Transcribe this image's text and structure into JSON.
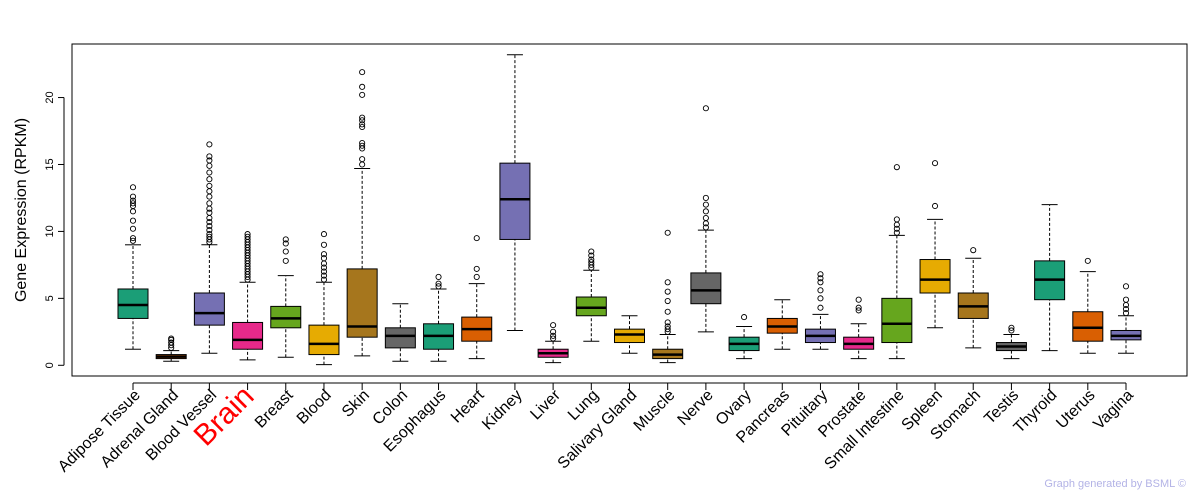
{
  "chart_data": {
    "type": "boxplot",
    "ylabel": "Gene Expression (RPKM)",
    "ylim": [
      -0.8,
      24.0
    ],
    "yticks": [
      0,
      5,
      10,
      15,
      20
    ],
    "highlight_category": "Brain",
    "highlight_color": "#ff0000",
    "categories": [
      {
        "name": "Adipose Tissue",
        "color": "#1b9e77",
        "whisker_low": 1.2,
        "q1": 3.5,
        "median": 4.5,
        "q3": 5.7,
        "whisker_high": 9.0,
        "outliers": [
          9.3,
          9.5,
          10.2,
          10.8,
          11.5,
          11.9,
          12.1,
          12.3,
          12.6,
          13.3
        ]
      },
      {
        "name": "Adrenal Gland",
        "color": "#d95f02",
        "whisker_low": 0.3,
        "q1": 0.5,
        "median": 0.65,
        "q3": 0.8,
        "whisker_high": 1.1,
        "outliers": [
          1.3,
          1.5,
          1.7,
          1.9,
          2.0
        ]
      },
      {
        "name": "Blood Vessel",
        "color": "#7570b3",
        "whisker_low": 0.9,
        "q1": 3.0,
        "median": 3.9,
        "q3": 5.4,
        "whisker_high": 9.0,
        "outliers": [
          9.2,
          9.4,
          9.6,
          9.8,
          10.1,
          10.4,
          10.7,
          11.0,
          11.4,
          11.7,
          12.1,
          12.6,
          13.0,
          13.4,
          13.9,
          14.4,
          14.9,
          15.3,
          15.6,
          16.5
        ]
      },
      {
        "name": "Brain",
        "color": "#e7298a",
        "whisker_low": 0.4,
        "q1": 1.2,
        "median": 1.9,
        "q3": 3.2,
        "whisker_high": 6.2,
        "outliers": [
          6.4,
          6.6,
          6.8,
          7.0,
          7.2,
          7.4,
          7.6,
          7.8,
          8.0,
          8.2,
          8.4,
          8.6,
          8.8,
          9.0,
          9.2,
          9.4,
          9.6,
          9.8
        ]
      },
      {
        "name": "Breast",
        "color": "#66a61e",
        "whisker_low": 0.6,
        "q1": 2.8,
        "median": 3.5,
        "q3": 4.4,
        "whisker_high": 6.7,
        "outliers": [
          7.8,
          8.5,
          9.1,
          9.4
        ]
      },
      {
        "name": "Blood",
        "color": "#e6ab02",
        "whisker_low": 0.05,
        "q1": 0.8,
        "median": 1.6,
        "q3": 3.0,
        "whisker_high": 6.2,
        "outliers": [
          6.4,
          6.7,
          7.0,
          7.3,
          7.6,
          8.0,
          8.3,
          9.0,
          9.8
        ]
      },
      {
        "name": "Skin",
        "color": "#a6761d",
        "whisker_low": 0.7,
        "q1": 2.1,
        "median": 2.9,
        "q3": 7.2,
        "whisker_high": 14.7,
        "outliers": [
          15.0,
          15.4,
          16.2,
          16.4,
          16.6,
          17.8,
          18.0,
          18.3,
          18.5,
          20.2,
          20.8,
          21.9
        ]
      },
      {
        "name": "Colon",
        "color": "#666666",
        "whisker_low": 0.3,
        "q1": 1.3,
        "median": 2.2,
        "q3": 2.8,
        "whisker_high": 4.6,
        "outliers": []
      },
      {
        "name": "Esophagus",
        "color": "#1b9e77",
        "whisker_low": 0.3,
        "q1": 1.2,
        "median": 2.2,
        "q3": 3.1,
        "whisker_high": 5.7,
        "outliers": [
          5.9,
          6.1,
          6.6
        ]
      },
      {
        "name": "Heart",
        "color": "#d95f02",
        "whisker_low": 0.5,
        "q1": 1.8,
        "median": 2.7,
        "q3": 3.6,
        "whisker_high": 6.1,
        "outliers": [
          6.6,
          7.2,
          9.5
        ]
      },
      {
        "name": "Kidney",
        "color": "#7570b3",
        "whisker_low": 2.6,
        "q1": 9.4,
        "median": 12.4,
        "q3": 15.1,
        "whisker_high": 23.2,
        "outliers": []
      },
      {
        "name": "Liver",
        "color": "#e7298a",
        "whisker_low": 0.2,
        "q1": 0.6,
        "median": 0.9,
        "q3": 1.2,
        "whisker_high": 1.8,
        "outliers": [
          2.0,
          2.2,
          2.5,
          3.0
        ]
      },
      {
        "name": "Lung",
        "color": "#66a61e",
        "whisker_low": 1.8,
        "q1": 3.7,
        "median": 4.3,
        "q3": 5.1,
        "whisker_high": 7.1,
        "outliers": [
          7.3,
          7.5,
          7.7,
          7.9,
          8.2,
          8.5
        ]
      },
      {
        "name": "Salivary Gland",
        "color": "#e6ab02",
        "whisker_low": 0.9,
        "q1": 1.7,
        "median": 2.3,
        "q3": 2.7,
        "whisker_high": 3.7,
        "outliers": []
      },
      {
        "name": "Muscle",
        "color": "#a6761d",
        "whisker_low": 0.2,
        "q1": 0.5,
        "median": 0.8,
        "q3": 1.2,
        "whisker_high": 2.3,
        "outliers": [
          2.5,
          2.7,
          2.9,
          3.2,
          4.0,
          4.8,
          5.5,
          6.2,
          9.9
        ]
      },
      {
        "name": "Nerve",
        "color": "#666666",
        "whisker_low": 2.5,
        "q1": 4.6,
        "median": 5.6,
        "q3": 6.9,
        "whisker_high": 10.1,
        "outliers": [
          10.3,
          10.6,
          11.0,
          11.5,
          12.0,
          12.5,
          19.2
        ]
      },
      {
        "name": "Ovary",
        "color": "#1b9e77",
        "whisker_low": 0.5,
        "q1": 1.1,
        "median": 1.6,
        "q3": 2.1,
        "whisker_high": 2.9,
        "outliers": [
          3.6
        ]
      },
      {
        "name": "Pancreas",
        "color": "#d95f02",
        "whisker_low": 1.2,
        "q1": 2.4,
        "median": 2.9,
        "q3": 3.5,
        "whisker_high": 4.9,
        "outliers": []
      },
      {
        "name": "Pituitary",
        "color": "#7570b3",
        "whisker_low": 1.2,
        "q1": 1.7,
        "median": 2.2,
        "q3": 2.7,
        "whisker_high": 3.8,
        "outliers": [
          4.3,
          5.0,
          5.6,
          6.2,
          6.5,
          6.8
        ]
      },
      {
        "name": "Prostate",
        "color": "#e7298a",
        "whisker_low": 0.5,
        "q1": 1.2,
        "median": 1.6,
        "q3": 2.1,
        "whisker_high": 3.1,
        "outliers": [
          4.1,
          4.3,
          4.9
        ]
      },
      {
        "name": "Small Intestine",
        "color": "#66a61e",
        "whisker_low": 0.5,
        "q1": 1.7,
        "median": 3.1,
        "q3": 5.0,
        "whisker_high": 9.7,
        "outliers": [
          9.9,
          10.2,
          10.5,
          10.9,
          14.8
        ]
      },
      {
        "name": "Spleen",
        "color": "#e6ab02",
        "whisker_low": 2.8,
        "q1": 5.4,
        "median": 6.4,
        "q3": 7.9,
        "whisker_high": 10.9,
        "outliers": [
          11.9,
          15.1
        ]
      },
      {
        "name": "Stomach",
        "color": "#a6761d",
        "whisker_low": 1.3,
        "q1": 3.5,
        "median": 4.4,
        "q3": 5.4,
        "whisker_high": 8.0,
        "outliers": [
          8.6
        ]
      },
      {
        "name": "Testis",
        "color": "#666666",
        "whisker_low": 0.5,
        "q1": 1.1,
        "median": 1.4,
        "q3": 1.7,
        "whisker_high": 2.3,
        "outliers": [
          2.6,
          2.8
        ]
      },
      {
        "name": "Thyroid",
        "color": "#1b9e77",
        "whisker_low": 1.1,
        "q1": 4.9,
        "median": 6.4,
        "q3": 7.8,
        "whisker_high": 12.0,
        "outliers": []
      },
      {
        "name": "Uterus",
        "color": "#d95f02",
        "whisker_low": 0.9,
        "q1": 1.8,
        "median": 2.8,
        "q3": 4.0,
        "whisker_high": 7.0,
        "outliers": [
          7.8
        ]
      },
      {
        "name": "Vagina",
        "color": "#7570b3",
        "whisker_low": 0.9,
        "q1": 1.9,
        "median": 2.2,
        "q3": 2.6,
        "whisker_high": 3.7,
        "outliers": [
          3.9,
          4.2,
          4.5,
          4.9,
          5.9
        ]
      }
    ]
  },
  "footer": "Graph generated by BSML ©"
}
